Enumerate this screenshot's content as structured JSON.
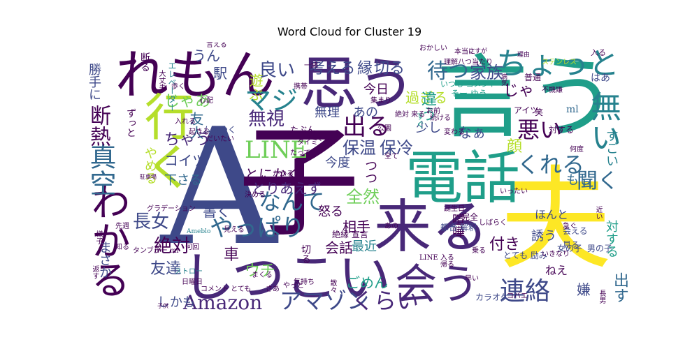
{
  "title": "Word Cloud for Cluster 19",
  "colors": {
    "dark_purple": "#440154",
    "purple": "#482878",
    "indigo": "#3e4989",
    "blue": "#31688e",
    "teal_blue": "#26828e",
    "teal": "#1f9e89",
    "green": "#35b779",
    "light_green": "#6ece58",
    "lime": "#b5de2b",
    "yellow": "#fde725"
  },
  "words": [
    {
      "text": "A",
      "color": "indigo"
    },
    {
      "text": "子",
      "color": "dark_purple"
    },
    {
      "text": "言う",
      "color": "teal"
    },
    {
      "text": "夫",
      "color": "yellow"
    },
    {
      "text": "電話",
      "color": "teal"
    },
    {
      "text": "思う",
      "color": "purple"
    },
    {
      "text": "れもん",
      "color": "dark_purple"
    },
    {
      "text": "来る",
      "color": "purple"
    },
    {
      "text": "しつこい",
      "color": "purple"
    },
    {
      "text": "行く",
      "color": "lime"
    },
    {
      "text": "会う",
      "color": "purple"
    },
    {
      "text": "わかる",
      "color": "dark_purple"
    },
    {
      "text": "ちょっと",
      "color": "teal_blue"
    },
    {
      "text": "無い",
      "color": "teal_blue"
    },
    {
      "text": "LINE",
      "color": "light_green"
    },
    {
      "text": "Amazon",
      "color": "purple"
    },
    {
      "text": "アマゾン",
      "color": "indigo"
    },
    {
      "text": "くらい",
      "color": "purple"
    },
    {
      "text": "連絡",
      "color": "indigo"
    },
    {
      "text": "真空",
      "color": "blue"
    },
    {
      "text": "断熱",
      "color": "dark_purple"
    },
    {
      "text": "やっぱり",
      "color": "blue"
    },
    {
      "text": "なんて",
      "color": "blue"
    },
    {
      "text": "全然",
      "color": "light_green"
    },
    {
      "text": "出る",
      "color": "dark_purple"
    },
    {
      "text": "待つ",
      "color": "blue"
    },
    {
      "text": "家族",
      "color": "indigo"
    },
    {
      "text": "マジ",
      "color": "teal_blue"
    },
    {
      "text": "無視",
      "color": "purple"
    },
    {
      "text": "良い",
      "color": "indigo"
    },
    {
      "text": "考える",
      "color": "indigo"
    },
    {
      "text": "縁",
      "color": "indigo"
    },
    {
      "text": "切る",
      "color": "indigo"
    },
    {
      "text": "保温",
      "color": "indigo"
    },
    {
      "text": "保冷",
      "color": "indigo"
    },
    {
      "text": "くれる",
      "color": "blue"
    },
    {
      "text": "悪い",
      "color": "dark_purple"
    },
    {
      "text": "聞く",
      "color": "blue"
    },
    {
      "text": "長女",
      "color": "indigo"
    },
    {
      "text": "絶対",
      "color": "dark_purple"
    },
    {
      "text": "友達",
      "color": "indigo"
    },
    {
      "text": "ウチ",
      "color": "light_green"
    },
    {
      "text": "ごめん",
      "color": "teal"
    },
    {
      "text": "出す",
      "color": "blue"
    },
    {
      "text": "嫌",
      "color": "indigo"
    },
    {
      "text": "しかも",
      "color": "indigo"
    },
    {
      "text": "車",
      "color": "dark_purple"
    },
    {
      "text": "会話",
      "color": "dark_purple"
    },
    {
      "text": "最近",
      "color": "teal_blue"
    },
    {
      "text": "書く",
      "color": "indigo"
    },
    {
      "text": "とりあえず",
      "color": "purple"
    },
    {
      "text": "とにかく",
      "color": "dark_purple"
    },
    {
      "text": "下さる",
      "color": "blue"
    },
    {
      "text": "コイツ",
      "color": "indigo"
    },
    {
      "text": "ちゃう",
      "color": "purple"
    },
    {
      "text": "じゃあ",
      "color": "light_green"
    },
    {
      "text": "友人",
      "color": "blue"
    },
    {
      "text": "駅",
      "color": "indigo"
    },
    {
      "text": "うん",
      "color": "indigo"
    },
    {
      "text": "勝手に",
      "color": "indigo"
    },
    {
      "text": "ずっと",
      "color": "dark_purple"
    },
    {
      "text": "断る",
      "color": "dark_purple"
    },
    {
      "text": "まさか",
      "color": "indigo"
    },
    {
      "text": "やめる",
      "color": "lime"
    },
    {
      "text": "今度",
      "color": "indigo"
    },
    {
      "text": "無理",
      "color": "indigo"
    },
    {
      "text": "あの",
      "color": "indigo"
    },
    {
      "text": "今日",
      "color": "dark_purple"
    },
    {
      "text": "過ぎる",
      "color": "lime"
    },
    {
      "text": "違う",
      "color": "teal"
    },
    {
      "text": "少し",
      "color": "indigo"
    },
    {
      "text": "じゃ",
      "color": "dark_purple"
    },
    {
      "text": "顔",
      "color": "lime"
    },
    {
      "text": "なぁ",
      "color": "indigo"
    },
    {
      "text": "つつ",
      "color": "dark_purple"
    },
    {
      "text": "もし",
      "color": "blue"
    },
    {
      "text": "すごい",
      "color": "teal_blue"
    },
    {
      "text": "対する",
      "color": "teal"
    },
    {
      "text": "ほんと",
      "color": "indigo"
    },
    {
      "text": "誘う",
      "color": "indigo"
    },
    {
      "text": "付き",
      "color": "dark_purple"
    },
    {
      "text": "相手",
      "color": "dark_purple"
    },
    {
      "text": "喧嘩",
      "color": "dark_purple"
    },
    {
      "text": "怒る",
      "color": "dark_purple"
    },
    {
      "text": "ねえ",
      "color": "dark_purple"
    },
    {
      "text": "ml",
      "color": "blue"
    },
    {
      "text": "はあ",
      "color": "indigo"
    },
    {
      "text": "遊ぶ",
      "color": "lime"
    },
    {
      "text": "ムカつく",
      "color": "indigo"
    },
    {
      "text": "エレベーター",
      "color": "teal_blue"
    },
    {
      "text": "グラデーション",
      "color": "dark_purple"
    },
    {
      "text": "タンブラー ml",
      "color": "dark_purple"
    },
    {
      "text": "ストロー",
      "color": "teal_blue"
    },
    {
      "text": "コメント とても",
      "color": "dark_purple"
    },
    {
      "text": "Ameblo",
      "color": "teal_blue"
    },
    {
      "text": "カラオケ",
      "color": "indigo"
    },
    {
      "text": "とても 励み",
      "color": "indigo"
    },
    {
      "text": "いつも コメント",
      "color": "teal"
    },
    {
      "text": "そー ゆう",
      "color": "teal"
    },
    {
      "text": "絶縁 宣言",
      "color": "dark_purple"
    },
    {
      "text": "完全",
      "color": "dark_purple"
    },
    {
      "text": "都合 解釈",
      "color": "indigo"
    },
    {
      "text": "会える",
      "color": "indigo"
    },
    {
      "text": "見る",
      "color": "indigo"
    },
    {
      "text": "男の子",
      "color": "indigo"
    },
    {
      "text": "女の子",
      "color": "indigo"
    },
    {
      "text": "いきなり",
      "color": "dark_purple"
    },
    {
      "text": "アイツ",
      "color": "dark_purple"
    },
    {
      "text": "笑",
      "color": "dark_purple"
    },
    {
      "text": "対する",
      "color": "dark_purple"
    },
    {
      "text": "不機嫌",
      "color": "dark_purple"
    },
    {
      "text": "普通",
      "color": "dark_purple"
    },
    {
      "text": "ステンレス",
      "color": "lime"
    },
    {
      "text": "何度",
      "color": "dark_purple"
    },
    {
      "text": "入る",
      "color": "dark_purple"
    },
    {
      "text": "八つ当たり",
      "color": "dark_purple"
    },
    {
      "text": "さすが",
      "color": "dark_purple"
    },
    {
      "text": "理由",
      "color": "dark_purple"
    },
    {
      "text": "病気",
      "color": "dark_purple"
    },
    {
      "text": "すぐ",
      "color": "teal"
    },
    {
      "text": "集まり",
      "color": "dark_purple"
    },
    {
      "text": "絶対 来る",
      "color": "dark_purple"
    },
    {
      "text": "お前",
      "color": "dark_purple"
    },
    {
      "text": "公園",
      "color": "dark_purple"
    },
    {
      "text": "一緒",
      "color": "dark_purple"
    },
    {
      "text": "携帯",
      "color": "dark_purple"
    },
    {
      "text": "心配",
      "color": "dark_purple"
    },
    {
      "text": "たぶん",
      "color": "dark_purple"
    },
    {
      "text": "タイミング",
      "color": "dark_purple"
    },
    {
      "text": "だいたい",
      "color": "dark_purple"
    },
    {
      "text": "入れる",
      "color": "dark_purple"
    },
    {
      "text": "起きる",
      "color": "dark_purple"
    },
    {
      "text": "子供",
      "color": "dark_purple"
    },
    {
      "text": "駐車場",
      "color": "dark_purple"
    },
    {
      "text": "先週",
      "color": "dark_purple"
    },
    {
      "text": "様子",
      "color": "dark_purple"
    },
    {
      "text": "知る",
      "color": "dark_purple"
    },
    {
      "text": "何回",
      "color": "dark_purple"
    },
    {
      "text": "返す",
      "color": "dark_purple"
    },
    {
      "text": "日曜日",
      "color": "dark_purple"
    },
    {
      "text": "気持ち",
      "color": "dark_purple"
    },
    {
      "text": "散々",
      "color": "dark_purple"
    },
    {
      "text": "乗る",
      "color": "dark_purple"
    },
    {
      "text": "帰る",
      "color": "dark_purple"
    },
    {
      "text": "早い",
      "color": "dark_purple"
    },
    {
      "text": "近い",
      "color": "dark_purple"
    },
    {
      "text": "長男",
      "color": "dark_purple"
    },
    {
      "text": "急ぐ",
      "color": "dark_purple"
    },
    {
      "text": "コバエ",
      "color": "dark_purple"
    },
    {
      "text": "誕生日",
      "color": "dark_purple"
    },
    {
      "text": "しばらく",
      "color": "dark_purple"
    },
    {
      "text": "続ける",
      "color": "dark_purple"
    },
    {
      "text": "変わる",
      "color": "dark_purple"
    },
    {
      "text": "大丈夫",
      "color": "dark_purple"
    },
    {
      "text": "歩く",
      "color": "dark_purple"
    },
    {
      "text": "言える",
      "color": "dark_purple"
    },
    {
      "text": "おかしい",
      "color": "dark_purple"
    },
    {
      "text": "理解",
      "color": "dark_purple"
    },
    {
      "text": "本当に",
      "color": "dark_purple"
    },
    {
      "text": "全て",
      "color": "dark_purple"
    },
    {
      "text": "かかる",
      "color": "dark_purple"
    },
    {
      "text": "決める",
      "color": "dark_purple"
    },
    {
      "text": "見える",
      "color": "dark_purple"
    },
    {
      "text": "まくる",
      "color": "dark_purple"
    },
    {
      "text": "やっと",
      "color": "dark_purple"
    },
    {
      "text": "いったい",
      "color": "dark_purple"
    },
    {
      "text": "LINE 入る",
      "color": "dark_purple"
    },
    {
      "text": "切る",
      "color": "dark_purple"
    },
    {
      "text": "たって",
      "color": "dark_purple"
    },
    {
      "text": "さあ",
      "color": "dark_purple"
    },
    {
      "text": "あの",
      "color": "dark_purple"
    }
  ]
}
